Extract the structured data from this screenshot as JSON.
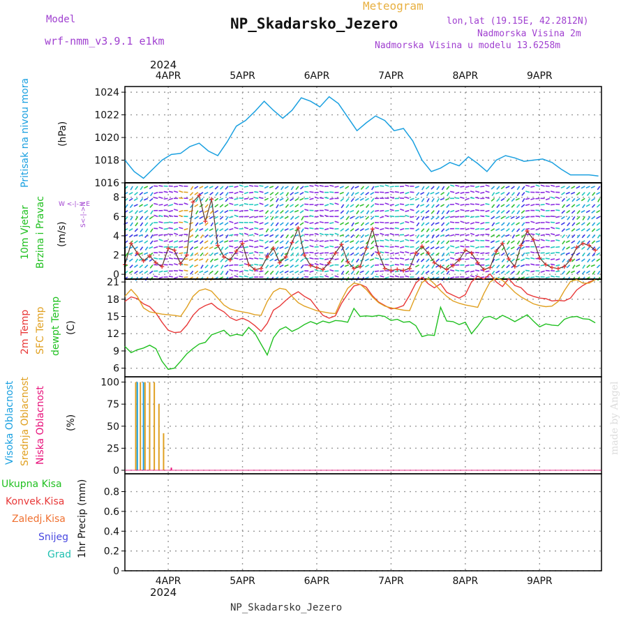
{
  "header": {
    "model_label": "Model",
    "model_value": "wrf-nmm_v3.9.1  e1km",
    "meteogram_label": "Meteogram",
    "station": "NP_Skadarsko_Jezero",
    "lonlat": "lon,lat (19.15E, 42.2812N)",
    "elevation": "Nadmorska Visina 2m",
    "model_elevation": "Nadmorska Visina u modelu 13.6258m",
    "footer_station": "NP_Skadarsko_Jezero",
    "credit": "made by Angel",
    "top_year": "2024",
    "bottom_year": "2024"
  },
  "colors": {
    "purple": "#a040d0",
    "orange": "#e8b040",
    "pressure": "#1aa0e0",
    "temp2m": "#e83838",
    "sfc": "#e0a020",
    "dew": "#20c020",
    "grid": "#999999"
  },
  "panel_labels": {
    "pressure": {
      "name": "Pritisak na nivou mora",
      "unit": "(hPa)"
    },
    "wind": {
      "name1": "10m Vjetar",
      "name2": "Brzina i Pravac",
      "unit": "(m/s)",
      "compass1": "W  <-|->  E",
      "compass2": "S<-|->N"
    },
    "temp": {
      "l1": "2m Temp",
      "l2": "SFC Temp",
      "l3": "dewpt Temp",
      "unit": "(C)"
    },
    "cloud": {
      "l1": "Visoka Oblacnost",
      "l2": "Srednja Oblacnost",
      "l3": "Niska Oblacnost",
      "unit": "(%)"
    },
    "precip": {
      "l1": "Ukupna Kisa",
      "l2": "Konvek.Kisa",
      "l3": "Zaledj.Kisa",
      "l4": "Snijeg",
      "l5": "Grad",
      "unit": "1hr Precip (mm)"
    }
  },
  "chart_data": [
    {
      "type": "line",
      "panel": "pressure",
      "ylabel": "(hPa)",
      "ylim": [
        1016,
        1024.5
      ],
      "yticks": [
        "1016",
        "1018",
        "1020",
        "1022",
        "1024"
      ],
      "xticks": [
        "4APR",
        "5APR",
        "6APR",
        "7APR",
        "8APR",
        "9APR"
      ],
      "xrange_hours": [
        -14,
        140
      ],
      "series": [
        {
          "name": "Pritisak na nivou mora",
          "color": "#1aa0e0",
          "x": [
            -14,
            -11,
            -8,
            -5,
            -2,
            1,
            4,
            7,
            10,
            13,
            16,
            19,
            22,
            25,
            28,
            31,
            34,
            37,
            40,
            43,
            46,
            49,
            52,
            55,
            58,
            61,
            64,
            67,
            70,
            73,
            76,
            79,
            82,
            85,
            88,
            91,
            94,
            97,
            100,
            103,
            106,
            109,
            112,
            115,
            118,
            121,
            124,
            127,
            130,
            133,
            136,
            139
          ],
          "y": [
            1018,
            1017,
            1016.4,
            1017.2,
            1018,
            1018.5,
            1018.6,
            1019.2,
            1019.5,
            1018.8,
            1018.4,
            1019.6,
            1021,
            1021.5,
            1022.3,
            1023.2,
            1022.4,
            1021.7,
            1022.4,
            1023.5,
            1023.2,
            1022.7,
            1023.6,
            1023,
            1021.8,
            1020.6,
            1021.3,
            1021.9,
            1021.5,
            1020.6,
            1020.8,
            1019.7,
            1018,
            1017,
            1017.3,
            1017.8,
            1017.5,
            1018.3,
            1017.7,
            1017,
            1018,
            1018.4,
            1018.2,
            1017.9,
            1018,
            1018.1,
            1017.8,
            1017.2,
            1016.7,
            1016.7,
            1016.7,
            1016.6
          ]
        }
      ]
    },
    {
      "type": "line",
      "panel": "wind",
      "ylabel": "(m/s)",
      "ylim": [
        -0.5,
        9.5
      ],
      "yticks": [
        "0",
        "2",
        "4",
        "6",
        "8"
      ],
      "xticks": [
        "4APR",
        "5APR",
        "6APR",
        "7APR",
        "8APR",
        "9APR"
      ],
      "series": [
        {
          "name": "10m Vjetar",
          "x": [
            -14,
            -12,
            -10,
            -8,
            -6,
            -4,
            -2,
            0,
            2,
            4,
            6,
            8,
            10,
            12,
            14,
            16,
            18,
            20,
            22,
            24,
            26,
            28,
            30,
            32,
            34,
            36,
            38,
            40,
            42,
            44,
            46,
            48,
            50,
            52,
            54,
            56,
            58,
            60,
            62,
            64,
            66,
            68,
            70,
            72,
            74,
            76,
            78,
            80,
            82,
            84,
            86,
            88,
            90,
            92,
            94,
            96,
            98,
            100,
            102,
            104,
            106,
            108,
            110,
            112,
            114,
            116,
            118,
            120,
            122,
            124,
            126,
            128,
            130,
            132,
            134,
            136,
            138
          ],
          "y": [
            1,
            3.2,
            2.2,
            1.4,
            1.9,
            1.2,
            0.8,
            2.7,
            2.5,
            1.1,
            2,
            7.5,
            8.2,
            5.5,
            7.8,
            3,
            1.8,
            1.5,
            2.4,
            3.2,
            1,
            0.5,
            0.6,
            1.8,
            2.7,
            1.2,
            1.8,
            3.3,
            4.8,
            2,
            0.9,
            0.7,
            0.5,
            1.2,
            2.2,
            3.1,
            1.3,
            0.6,
            0.8,
            2.7,
            4.7,
            2.2,
            0.6,
            0.4,
            0.5,
            0.4,
            0.6,
            2.2,
            2.9,
            2.2,
            1.2,
            0.8,
            0.5,
            0.9,
            1.5,
            2.5,
            2.2,
            1.2,
            0.5,
            0.7,
            2.4,
            3.2,
            1.6,
            0.8,
            3,
            4.5,
            3.6,
            1.7,
            1,
            0.7,
            0.6,
            0.8,
            1.5,
            2.8,
            3.2,
            3,
            2.5
          ]
        }
      ]
    },
    {
      "type": "line",
      "panel": "temperature",
      "ylabel": "(C)",
      "ylim": [
        4.5,
        21.5
      ],
      "yticks": [
        "6",
        "9",
        "12",
        "15",
        "18",
        "21"
      ],
      "xticks": [
        "4APR",
        "5APR",
        "6APR",
        "7APR",
        "8APR",
        "9APR"
      ],
      "series": [
        {
          "name": "2m Temp",
          "color": "#e83838",
          "x": [
            -14,
            -12,
            -10,
            -8,
            -6,
            -4,
            -2,
            0,
            2,
            4,
            6,
            8,
            10,
            12,
            14,
            16,
            18,
            20,
            22,
            24,
            26,
            28,
            30,
            32,
            34,
            36,
            38,
            40,
            42,
            44,
            46,
            48,
            50,
            52,
            54,
            56,
            58,
            60,
            62,
            64,
            66,
            68,
            70,
            72,
            74,
            76,
            78,
            80,
            82,
            84,
            86,
            88,
            90,
            92,
            94,
            96,
            98,
            100,
            102,
            104,
            106,
            108,
            110,
            112,
            114,
            116,
            118,
            120,
            122,
            124,
            126,
            128,
            130,
            132,
            134,
            136,
            138
          ],
          "y": [
            17.6,
            18.4,
            18.1,
            17.2,
            16.7,
            15.6,
            14,
            12.6,
            12.2,
            12.3,
            13.5,
            15.2,
            16.3,
            16.9,
            17.3,
            16.4,
            15.8,
            14.8,
            14.3,
            14.7,
            14.2,
            13.4,
            12.4,
            13.8,
            16.1,
            16.8,
            17.8,
            18.7,
            19.3,
            18.5,
            17.9,
            16.5,
            15.2,
            14.7,
            15.1,
            17.3,
            18.9,
            20.3,
            20.6,
            20.1,
            18.6,
            17.5,
            16.9,
            16.3,
            16.5,
            16.9,
            18.7,
            20.8,
            21.8,
            20.7,
            20,
            20.7,
            19.2,
            18.7,
            18.2,
            18.8,
            21,
            22,
            21.5,
            22.4,
            21,
            20.2,
            21.6,
            20.4,
            20,
            18.9,
            18.5,
            18.2,
            18.1,
            17.7,
            17.8,
            17.7,
            18.2,
            19.6,
            20.4,
            21,
            21.4
          ]
        },
        {
          "name": "SFC Temp",
          "color": "#e0a020",
          "x": [
            -14,
            -12,
            -10,
            -8,
            -6,
            -4,
            -2,
            0,
            2,
            4,
            6,
            8,
            10,
            12,
            14,
            16,
            18,
            20,
            22,
            24,
            26,
            28,
            30,
            32,
            34,
            36,
            38,
            40,
            42,
            44,
            46,
            48,
            50,
            52,
            54,
            56,
            58,
            60,
            62,
            64,
            66,
            68,
            70,
            72,
            74,
            76,
            78,
            80,
            82,
            84,
            86,
            88,
            90,
            92,
            94,
            96,
            98,
            100,
            102,
            104,
            106,
            108,
            110,
            112,
            114,
            116,
            118,
            120,
            122,
            124,
            126,
            128,
            130,
            132,
            134,
            136,
            138
          ],
          "y": [
            18.5,
            19.7,
            18.5,
            16.5,
            15.8,
            15.6,
            15.4,
            15.3,
            15.2,
            15,
            16.6,
            18.5,
            19.5,
            19.8,
            19.4,
            18.2,
            17,
            16.3,
            16,
            15.8,
            15.6,
            15.3,
            15.2,
            17.6,
            19.3,
            19.9,
            19.7,
            18.5,
            17.4,
            16.8,
            16.4,
            16,
            15.8,
            15.6,
            15.5,
            17.9,
            19.9,
            20.8,
            20.6,
            19.7,
            18.4,
            17.4,
            16.8,
            16.5,
            16.3,
            16.1,
            16,
            18.6,
            20.9,
            21.6,
            20.7,
            19.5,
            18.5,
            17.7,
            17.3,
            17,
            16.8,
            16.6,
            19,
            21,
            21.7,
            21.3,
            20.3,
            19.2,
            18.4,
            17.8,
            17.2,
            16.9,
            16.7,
            16.8,
            17.6,
            19.5,
            21.1,
            21.4,
            20.8,
            20.8,
            21.4
          ]
        },
        {
          "name": "dewpt Temp",
          "color": "#20c020",
          "x": [
            -14,
            -12,
            -10,
            -8,
            -6,
            -4,
            -2,
            0,
            2,
            4,
            6,
            8,
            10,
            12,
            14,
            16,
            18,
            20,
            22,
            24,
            26,
            28,
            30,
            32,
            34,
            36,
            38,
            40,
            42,
            44,
            46,
            48,
            50,
            52,
            54,
            56,
            58,
            60,
            62,
            64,
            66,
            68,
            70,
            72,
            74,
            76,
            78,
            80,
            82,
            84,
            86,
            88,
            90,
            92,
            94,
            96,
            98,
            100,
            102,
            104,
            106,
            108,
            110,
            112,
            114,
            116,
            118,
            120,
            122,
            124,
            126,
            128,
            130,
            132,
            134,
            136,
            138
          ],
          "y": [
            9.8,
            8.7,
            9.2,
            9.5,
            10,
            9.4,
            7.2,
            5.8,
            6,
            7.2,
            8.5,
            9.4,
            10.2,
            10.5,
            11.8,
            12.2,
            12.6,
            11.6,
            11.9,
            11.7,
            13.1,
            12.1,
            10.2,
            8.3,
            11.3,
            12.7,
            13.2,
            12.4,
            12.9,
            13.6,
            14.1,
            13.7,
            14.2,
            13.9,
            14.3,
            14.2,
            14,
            16.4,
            15,
            15.1,
            15,
            15.2,
            15,
            14.3,
            14.5,
            14,
            14.1,
            13.4,
            11.5,
            11.8,
            11.7,
            16.6,
            14.2,
            14.1,
            13.6,
            14,
            12,
            13.3,
            14.8,
            15,
            14.5,
            15.2,
            14.7,
            14.1,
            14.7,
            15.3,
            14.2,
            13.2,
            13.7,
            13.5,
            13.4,
            14.5,
            14.9,
            15,
            14.6,
            14.5,
            13.9
          ]
        }
      ]
    },
    {
      "type": "bar",
      "panel": "cloud",
      "ylabel": "(%)",
      "ylim": [
        -4,
        106
      ],
      "yticks": [
        "0",
        "25",
        "50",
        "75",
        "100"
      ],
      "xticks": [
        "4APR",
        "5APR",
        "6APR",
        "7APR",
        "8APR",
        "9APR"
      ],
      "series": [
        {
          "name": "Visoka Oblacnost",
          "color": "#1aa0e0",
          "x": [
            -10,
            -8,
            -6
          ],
          "y": [
            100,
            100,
            100
          ]
        },
        {
          "name": "Srednja Oblacnost",
          "color": "#e0a020",
          "x": [
            -10.5,
            -9,
            -7.5,
            -6,
            -4.5,
            -3,
            -1.5
          ],
          "y": [
            100,
            100,
            100,
            100,
            100,
            75,
            42
          ]
        },
        {
          "name": "Niska Oblacnost",
          "color": "#e8107a",
          "x": [
            1
          ],
          "y": [
            3
          ]
        }
      ]
    },
    {
      "type": "bar",
      "panel": "precipitation",
      "ylabel": "1hr Precip (mm)",
      "ylim": [
        0,
        0.98
      ],
      "yticks": [
        "0",
        "0.2",
        "0.4",
        "0.6",
        "0.8"
      ],
      "xticks": [
        "4APR",
        "5APR",
        "6APR",
        "7APR",
        "8APR",
        "9APR"
      ],
      "series": []
    }
  ]
}
